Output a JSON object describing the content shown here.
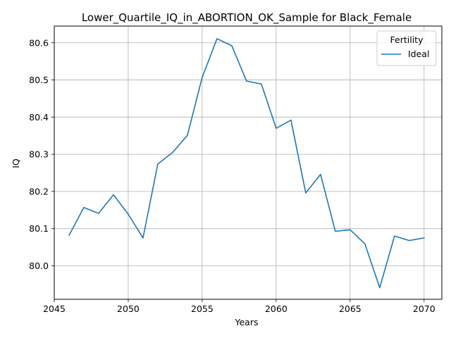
{
  "chart_data": {
    "type": "line",
    "title": "Lower_Quartile_IQ_in_ABORTION_OK_Sample for Black_Female",
    "xlabel": "Years",
    "ylabel": "IQ",
    "xlim": [
      2045.0,
      2071.2
    ],
    "ylim": [
      79.91,
      80.645
    ],
    "xticks": [
      2045,
      2050,
      2055,
      2060,
      2065,
      2070
    ],
    "xtick_labels": [
      "2045",
      "2050",
      "2055",
      "2060",
      "2065",
      "2070"
    ],
    "yticks": [
      80.0,
      80.1,
      80.2,
      80.3,
      80.4,
      80.5,
      80.6
    ],
    "ytick_labels": [
      "80.0",
      "80.1",
      "80.2",
      "80.3",
      "80.4",
      "80.5",
      "80.6"
    ],
    "grid": true,
    "legend": {
      "title": "Fertility",
      "placement": "top-right"
    },
    "series": [
      {
        "name": "Ideal",
        "color": "#1f77b4",
        "x": [
          2046,
          2047,
          2048,
          2049,
          2050,
          2051,
          2052,
          2053,
          2054,
          2055,
          2056,
          2057,
          2058,
          2059,
          2060,
          2061,
          2062,
          2063,
          2064,
          2065,
          2066,
          2067,
          2068,
          2069,
          2070
        ],
        "y": [
          80.082,
          80.157,
          80.141,
          80.191,
          80.139,
          80.075,
          80.274,
          80.305,
          80.351,
          80.507,
          80.611,
          80.592,
          80.497,
          80.489,
          80.37,
          80.392,
          80.196,
          80.246,
          80.093,
          80.097,
          80.059,
          79.941,
          80.08,
          80.068,
          80.075
        ]
      }
    ]
  }
}
